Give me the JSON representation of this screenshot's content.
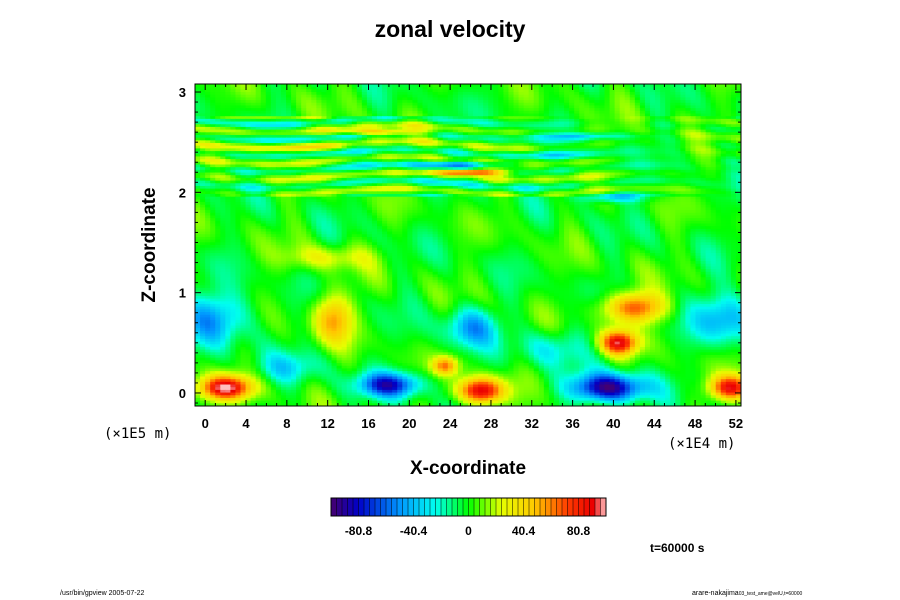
{
  "chart_data": {
    "type": "heatmap",
    "title": "zonal velocity",
    "xlabel": "X-coordinate",
    "ylabel": "Z-coordinate",
    "x_unit_label": "(×1E4 m)",
    "y_unit_label": "(×1E5 m)",
    "xlim": [
      -1,
      52.5
    ],
    "ylim": [
      -0.13,
      3.08
    ],
    "x_ticks": [
      0,
      4,
      8,
      12,
      16,
      20,
      24,
      28,
      32,
      36,
      40,
      44,
      48,
      52
    ],
    "y_ticks": [
      0,
      1,
      2,
      3
    ],
    "colorbar": {
      "range": [
        -101,
        101
      ],
      "tick_values": [
        -80.8,
        -40.4,
        0,
        40.4,
        80.8
      ],
      "tick_labels": [
        "-80.8",
        "-40.4",
        "0",
        "40.4",
        "80.8"
      ],
      "colormap": "rainbow"
    },
    "features": [
      {
        "x": 2,
        "z": 0.05,
        "value": 95,
        "sx": 2.5,
        "sz": 0.12
      },
      {
        "x": 51.5,
        "z": 0.05,
        "value": 85,
        "sx": 2.0,
        "sz": 0.12
      },
      {
        "x": 18,
        "z": 0.08,
        "value": -75,
        "sx": 3.0,
        "sz": 0.12
      },
      {
        "x": 27,
        "z": 0.02,
        "value": 95,
        "sx": 2.2,
        "sz": 0.13
      },
      {
        "x": 39.5,
        "z": 0.05,
        "value": -95,
        "sx": 3.5,
        "sz": 0.14
      },
      {
        "x": 12.5,
        "z": 0.75,
        "value": 50,
        "sx": 2.0,
        "sz": 0.25
      },
      {
        "x": 1,
        "z": 0.75,
        "value": -45,
        "sx": 3.5,
        "sz": 0.25
      },
      {
        "x": 51,
        "z": 0.75,
        "value": -45,
        "sx": 3.0,
        "sz": 0.25
      },
      {
        "x": 26,
        "z": 0.65,
        "value": -45,
        "sx": 2.5,
        "sz": 0.2
      },
      {
        "x": 40.5,
        "z": 0.5,
        "value": 85,
        "sx": 1.8,
        "sz": 0.12
      },
      {
        "x": 42,
        "z": 0.85,
        "value": 70,
        "sx": 3.0,
        "sz": 0.15
      },
      {
        "x": 23.5,
        "z": 0.27,
        "value": 55,
        "sx": 1.2,
        "sz": 0.09
      },
      {
        "x": 8,
        "z": 0.25,
        "value": -25,
        "sx": 3.0,
        "sz": 0.15
      },
      {
        "x": 34,
        "z": 0.45,
        "value": -25,
        "sx": 3.0,
        "sz": 0.18
      },
      {
        "x": 26,
        "z": 2.2,
        "value": 90,
        "sx": 3.5,
        "sz": 0.03
      },
      {
        "x": 26,
        "z": 2.28,
        "value": -45,
        "sx": 5.0,
        "sz": 0.03
      },
      {
        "x": 17,
        "z": 2.6,
        "value": 55,
        "sx": 4.0,
        "sz": 0.03
      },
      {
        "x": 36,
        "z": 2.56,
        "value": -25,
        "sx": 6.0,
        "sz": 0.03
      },
      {
        "x": 40,
        "z": 1.95,
        "value": -40,
        "sx": 3.0,
        "sz": 0.05
      },
      {
        "x": 34,
        "z": 2.37,
        "value": -20,
        "sx": 6.0,
        "sz": 0.04
      },
      {
        "x": 10,
        "z": 2.45,
        "value": 25,
        "sx": 6.0,
        "sz": 0.04
      },
      {
        "x": 12,
        "z": 1.35,
        "value": 25,
        "sx": 4.0,
        "sz": 0.12
      }
    ]
  },
  "footer": {
    "left": "/usr/bin/gpview 2005-07-22",
    "right_main": "arare-nakajima",
    "right_sub": "03_test_ame@velU,t=60000"
  },
  "time_label": "t=60000 s",
  "colors": {
    "frame": "#000000",
    "background": "#ffffff"
  }
}
